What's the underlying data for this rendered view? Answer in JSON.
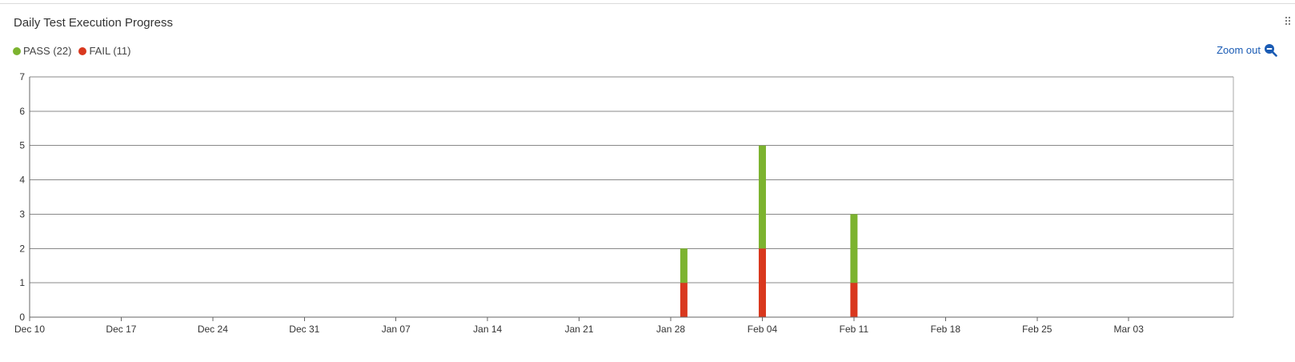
{
  "header": {
    "title": "Daily Test Execution Progress"
  },
  "legend": [
    {
      "label": "PASS (22)",
      "color": "#7cb32f"
    },
    {
      "label": "FAIL (11)",
      "color": "#d9381e"
    }
  ],
  "toolbar": {
    "zoom_out_label": "Zoom out",
    "zoom_icon": "zoom-out-icon",
    "drag_icon": "drag-handle-icon"
  },
  "colors": {
    "pass": "#7cb32f",
    "fail": "#d9381e",
    "grid": "#888888",
    "link": "#1a5bb4"
  },
  "chart_data": {
    "type": "bar",
    "title": "Daily Test Execution Progress",
    "xlabel": "",
    "ylabel": "",
    "ylim": [
      0,
      7
    ],
    "y_ticks": [
      "0",
      "1",
      "2",
      "3",
      "4",
      "5",
      "6",
      "7"
    ],
    "x_range": [
      "2023-12-10",
      "2024-03-11"
    ],
    "x_ticks": [
      {
        "label": "Dec 10",
        "date": "2023-12-10"
      },
      {
        "label": "Dec 17",
        "date": "2023-12-17"
      },
      {
        "label": "Dec 24",
        "date": "2023-12-24"
      },
      {
        "label": "Dec 31",
        "date": "2023-12-31"
      },
      {
        "label": "Jan 07",
        "date": "2024-01-07"
      },
      {
        "label": "Jan 14",
        "date": "2024-01-14"
      },
      {
        "label": "Jan 21",
        "date": "2024-01-21"
      },
      {
        "label": "Jan 28",
        "date": "2024-01-28"
      },
      {
        "label": "Feb 04",
        "date": "2024-02-04"
      },
      {
        "label": "Feb 11",
        "date": "2024-02-11"
      },
      {
        "label": "Feb 18",
        "date": "2024-02-18"
      },
      {
        "label": "Feb 25",
        "date": "2024-02-25"
      },
      {
        "label": "Mar 03",
        "date": "2024-03-03"
      }
    ],
    "grid": true,
    "legend_position": "top-left",
    "series": [
      {
        "name": "PASS",
        "color": "#7cb32f",
        "points": [
          {
            "date": "2024-01-29",
            "value": 1
          },
          {
            "date": "2024-02-04",
            "value": 3
          },
          {
            "date": "2024-02-11",
            "value": 2
          }
        ]
      },
      {
        "name": "FAIL",
        "color": "#d9381e",
        "points": [
          {
            "date": "2024-01-29",
            "value": 1
          },
          {
            "date": "2024-02-04",
            "value": 2
          },
          {
            "date": "2024-02-11",
            "value": 1
          }
        ]
      }
    ]
  }
}
